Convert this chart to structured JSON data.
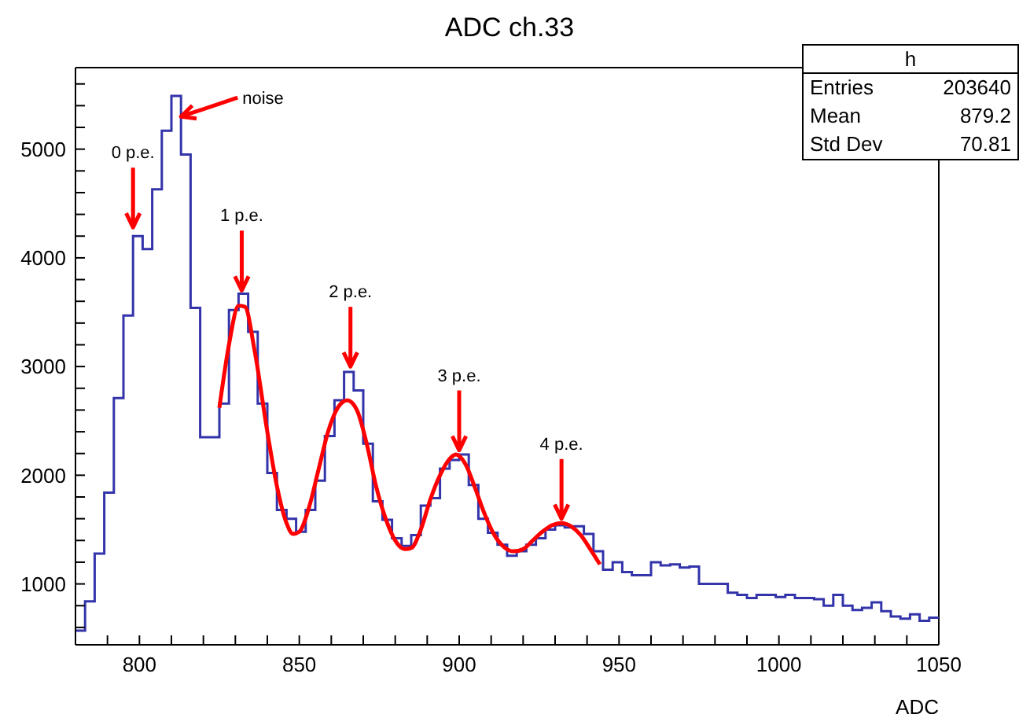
{
  "chart_data": {
    "type": "histogram",
    "title": "ADC ch.33",
    "xlabel": "ADC",
    "bins": [
      780,
      783,
      786,
      789,
      792,
      795,
      798,
      801,
      804,
      807,
      810,
      813,
      816,
      819,
      822,
      825,
      828,
      831,
      834,
      837,
      840,
      843,
      846,
      849,
      852,
      855,
      858,
      861,
      864,
      867,
      870,
      873,
      876,
      879,
      882,
      885,
      888,
      891,
      894,
      897,
      900,
      903,
      906,
      909,
      912,
      915,
      918,
      921,
      924,
      927,
      930,
      933,
      936,
      939,
      942,
      945,
      948,
      951,
      954,
      957,
      960,
      963,
      966,
      969,
      972,
      975,
      978,
      981,
      984,
      987,
      990,
      993,
      996,
      999,
      1002,
      1005,
      1008,
      1011,
      1014,
      1017,
      1020,
      1023,
      1026,
      1029,
      1032,
      1035,
      1038,
      1041,
      1044,
      1047,
      1050
    ],
    "values": [
      570,
      840,
      1280,
      1840,
      2710,
      3470,
      4200,
      4080,
      4630,
      5170,
      5490,
      4950,
      3540,
      2350,
      2350,
      2660,
      3520,
      3670,
      3320,
      2660,
      2020,
      1680,
      1600,
      1480,
      1680,
      1950,
      2360,
      2690,
      2950,
      2780,
      2290,
      1760,
      1590,
      1420,
      1350,
      1450,
      1720,
      1790,
      2060,
      2140,
      2190,
      1910,
      1600,
      1470,
      1360,
      1260,
      1300,
      1360,
      1420,
      1500,
      1540,
      1520,
      1530,
      1460,
      1300,
      1130,
      1200,
      1110,
      1080,
      1080,
      1200,
      1170,
      1180,
      1150,
      1160,
      1000,
      1000,
      1000,
      920,
      900,
      870,
      900,
      900,
      880,
      900,
      870,
      870,
      860,
      800,
      900,
      800,
      760,
      780,
      830,
      750,
      700,
      680,
      720,
      660,
      690
    ],
    "color": "#3333aa",
    "series": [
      {
        "type": "line",
        "color": "#ff0000",
        "x": [
          825,
          828,
          831,
          833,
          836,
          840,
          843,
          846,
          848,
          850,
          853,
          856,
          859,
          862,
          865,
          868,
          871,
          874,
          877,
          880,
          883,
          885,
          888,
          891,
          894,
          897,
          899,
          902,
          905,
          908,
          911,
          914,
          917,
          920,
          923,
          926,
          929,
          932,
          935,
          938,
          941,
          944
        ],
        "values": [
          2620,
          3200,
          3560,
          3550,
          3150,
          2400,
          1900,
          1560,
          1460,
          1480,
          1700,
          2050,
          2400,
          2620,
          2690,
          2600,
          2300,
          1900,
          1600,
          1400,
          1320,
          1330,
          1500,
          1780,
          2000,
          2150,
          2190,
          2100,
          1880,
          1640,
          1450,
          1340,
          1300,
          1320,
          1400,
          1480,
          1540,
          1560,
          1530,
          1450,
          1320,
          1180
        ]
      }
    ],
    "xlim": [
      780,
      1050
    ],
    "xticks": [
      {
        "value": 790,
        "label": null
      },
      800,
      {
        "value": 810,
        "label": null
      },
      {
        "value": 820,
        "label": null
      },
      {
        "value": 830,
        "label": null
      },
      {
        "value": 840,
        "label": null
      },
      850,
      {
        "value": 860,
        "label": null
      },
      {
        "value": 870,
        "label": null
      },
      {
        "value": 880,
        "label": null
      },
      {
        "value": 890,
        "label": null
      },
      900,
      {
        "value": 910,
        "label": null
      },
      {
        "value": 920,
        "label": null
      },
      {
        "value": 930,
        "label": null
      },
      {
        "value": 940,
        "label": null
      },
      950,
      {
        "value": 960,
        "label": null
      },
      {
        "value": 970,
        "label": null
      },
      {
        "value": 980,
        "label": null
      },
      {
        "value": 990,
        "label": null
      },
      1000,
      {
        "value": 1010,
        "label": null
      },
      {
        "value": 1020,
        "label": null
      },
      {
        "value": 1030,
        "label": null
      },
      {
        "value": 1040,
        "label": null
      },
      1050
    ],
    "ylim": [
      440,
      5750
    ],
    "yticks": [
      {
        "value": 600,
        "label": null
      },
      {
        "value": 800,
        "label": null
      },
      1000,
      {
        "value": 1200,
        "label": null
      },
      {
        "value": 1400,
        "label": null
      },
      {
        "value": 1600,
        "label": null
      },
      {
        "value": 1800,
        "label": null
      },
      2000,
      {
        "value": 2200,
        "label": null
      },
      {
        "value": 2400,
        "label": null
      },
      {
        "value": 2600,
        "label": null
      },
      {
        "value": 2800,
        "label": null
      },
      3000,
      {
        "value": 3200,
        "label": null
      },
      {
        "value": 3400,
        "label": null
      },
      {
        "value": 3600,
        "label": null
      },
      {
        "value": 3800,
        "label": null
      },
      4000,
      {
        "value": 4200,
        "label": null
      },
      {
        "value": 4400,
        "label": null
      },
      {
        "value": 4600,
        "label": null
      },
      {
        "value": 4800,
        "label": null
      },
      5000,
      {
        "value": 5200,
        "label": null
      },
      {
        "value": 5400,
        "label": null
      },
      {
        "value": 5600,
        "label": null
      }
    ],
    "annotations": [
      {
        "text": "noise",
        "x": 813,
        "y": 5300
      },
      {
        "text": "0 p.e.",
        "x": 798,
        "y": 4280
      },
      {
        "text": "1 p.e.",
        "x": 832,
        "y": 3700
      },
      {
        "text": "2 p.e.",
        "x": 866,
        "y": 3000
      },
      {
        "text": "3 p.e.",
        "x": 900,
        "y": 2230
      },
      {
        "text": "4 p.e.",
        "x": 932,
        "y": 1600
      },
      "h",
      "Entries",
      "203640",
      "Mean",
      "879.2",
      "Std Dev",
      "70.81"
    ]
  }
}
